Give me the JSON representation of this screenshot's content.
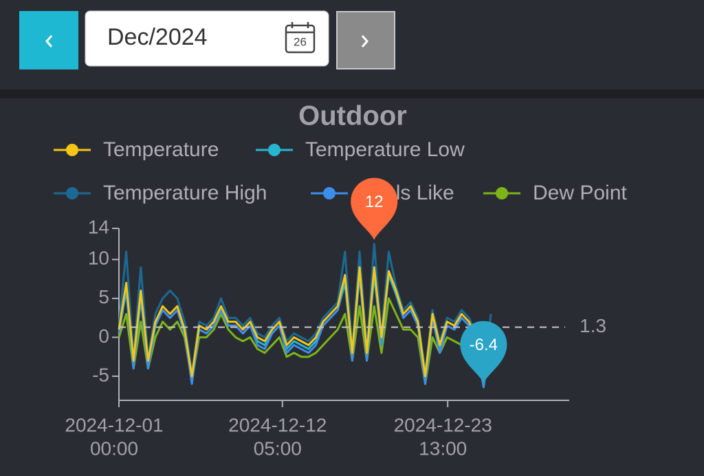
{
  "toolbar": {
    "date": "Dec/2024",
    "calendar_day": "26"
  },
  "chart_data": {
    "type": "line",
    "title": "Outdoor",
    "x": [
      "2024-12-01 00:00",
      "2024-12-01 12:00",
      "2024-12-02 00:00",
      "2024-12-02 12:00",
      "2024-12-03 00:00",
      "2024-12-03 12:00",
      "2024-12-04 00:00",
      "2024-12-04 12:00",
      "2024-12-05 00:00",
      "2024-12-05 12:00",
      "2024-12-06 00:00",
      "2024-12-06 12:00",
      "2024-12-07 00:00",
      "2024-12-07 12:00",
      "2024-12-08 00:00",
      "2024-12-08 12:00",
      "2024-12-09 00:00",
      "2024-12-09 12:00",
      "2024-12-10 00:00",
      "2024-12-10 12:00",
      "2024-12-11 00:00",
      "2024-12-11 12:00",
      "2024-12-12 00:00",
      "2024-12-12 12:00",
      "2024-12-13 00:00",
      "2024-12-13 12:00",
      "2024-12-14 00:00",
      "2024-12-14 12:00",
      "2024-12-15 00:00",
      "2024-12-15 12:00",
      "2024-12-16 00:00",
      "2024-12-16 12:00",
      "2024-12-17 00:00",
      "2024-12-17 12:00",
      "2024-12-18 00:00",
      "2024-12-18 12:00",
      "2024-12-19 00:00",
      "2024-12-19 12:00",
      "2024-12-20 00:00",
      "2024-12-20 12:00",
      "2024-12-21 00:00",
      "2024-12-21 12:00",
      "2024-12-22 00:00",
      "2024-12-22 12:00",
      "2024-12-23 00:00",
      "2024-12-23 12:00",
      "2024-12-24 00:00",
      "2024-12-24 12:00",
      "2024-12-25 00:00",
      "2024-12-25 12:00",
      "2024-12-26 00:00",
      "2024-12-26 12:00"
    ],
    "series": [
      {
        "name": "Temperature High",
        "color": "#1b6a95",
        "values": [
          1.5,
          11,
          -2.5,
          9,
          -2.5,
          3,
          5,
          6,
          5,
          2,
          -4.5,
          2,
          1.5,
          2.5,
          5,
          2.5,
          2.5,
          1.5,
          2.5,
          0.5,
          0,
          1.5,
          2.5,
          -0.5,
          0.5,
          0,
          -0.5,
          0.5,
          2.5,
          3.5,
          4.5,
          11,
          -1.5,
          11,
          -1.5,
          12,
          0.5,
          11,
          6.5,
          3.5,
          4.5,
          2.5,
          -4.5,
          3.5,
          -0.5,
          2.5,
          2,
          3.5,
          2.5,
          0.5,
          -5,
          3
        ]
      },
      {
        "name": "Temperature Low",
        "color": "#26b6d0",
        "values": [
          0.5,
          6,
          -4,
          5,
          -4,
          1.5,
          3.5,
          2.5,
          3.5,
          0.5,
          -5.5,
          1,
          0.5,
          1.5,
          3.5,
          1.5,
          1.5,
          0.5,
          1.5,
          -0.5,
          -1,
          0.5,
          1.5,
          -1.5,
          -0.5,
          -1,
          -1.5,
          -0.5,
          1.5,
          2.5,
          3.5,
          7,
          -2.5,
          8,
          -2.5,
          8,
          -0.5,
          8,
          5.5,
          2.5,
          3.5,
          1.5,
          -5.5,
          2.5,
          -1.5,
          1.5,
          1,
          2.5,
          1.5,
          -0.5,
          -6.4,
          1
        ]
      },
      {
        "name": "Dew Point",
        "color": "#7cb518",
        "values": [
          0,
          3,
          -4,
          2,
          -4,
          0,
          2,
          1,
          2,
          0,
          -5.5,
          0,
          0,
          1,
          3,
          1,
          0,
          -0.5,
          0,
          -1.5,
          -2,
          -1,
          0,
          -2.5,
          -2,
          -2.5,
          -2.5,
          -2,
          -1,
          0,
          1,
          3,
          -3,
          4,
          -3,
          4,
          -2,
          5,
          3,
          1,
          1,
          0,
          -6,
          0,
          -2,
          0,
          -0.5,
          -1,
          0,
          -2,
          -6.2,
          -1
        ]
      },
      {
        "name": "Feels Like",
        "color": "#3b8eea",
        "values": [
          0.5,
          6.5,
          -4,
          5.5,
          -4,
          1.5,
          3.5,
          2.5,
          3.5,
          0.5,
          -6,
          1,
          0.5,
          1.5,
          3.5,
          1.5,
          1.5,
          0.5,
          1.5,
          -1,
          -1.5,
          0.5,
          1.5,
          -2,
          -1,
          -1.5,
          -2,
          -1,
          1.5,
          2.5,
          3.5,
          8,
          -3,
          9,
          -3,
          9,
          -1,
          8.5,
          6,
          2.5,
          3.5,
          1.5,
          -6,
          2.5,
          -2,
          1.5,
          1,
          2.5,
          1.5,
          -1,
          -6.3,
          0.5
        ]
      },
      {
        "name": "Temperature",
        "color": "#f5c518",
        "values": [
          1,
          7,
          -3,
          6,
          -3,
          2,
          4,
          3,
          4,
          1,
          -5,
          1.5,
          1,
          2,
          4,
          2,
          2,
          1,
          2,
          0,
          -0.5,
          1,
          2,
          -1,
          0,
          -0.5,
          -1,
          0,
          2,
          3,
          4,
          8,
          -2,
          9,
          -2,
          9,
          0,
          8.5,
          6,
          3,
          4,
          2,
          -5,
          3,
          -1,
          2,
          1.5,
          3,
          2,
          0,
          -5.5,
          1.3
        ]
      }
    ],
    "legend_order": [
      4,
      1,
      0,
      3,
      2
    ],
    "xlim": [
      "2024-12-01 00:00",
      "2024-12-31 21:00"
    ],
    "xticks": [
      {
        "value": "2024-12-01 00:00",
        "label": [
          "2024-12-01",
          "00:00"
        ]
      },
      {
        "value": "2024-12-12 05:00",
        "label": [
          "2024-12-12",
          "05:00"
        ]
      },
      {
        "value": "2024-12-23 13:00",
        "label": [
          "2024-12-23",
          "13:00"
        ]
      }
    ],
    "ylim": [
      -8.1,
      14
    ],
    "yticks": [
      -5,
      0,
      5,
      10,
      14
    ],
    "max_marker": {
      "x": "2024-12-18 12:00",
      "value": 12,
      "color": "#ff6b3d"
    },
    "min_marker": {
      "x": "2024-12-26 00:00",
      "value": -6.4,
      "color": "#2aa5c8"
    },
    "average": 1.3
  }
}
